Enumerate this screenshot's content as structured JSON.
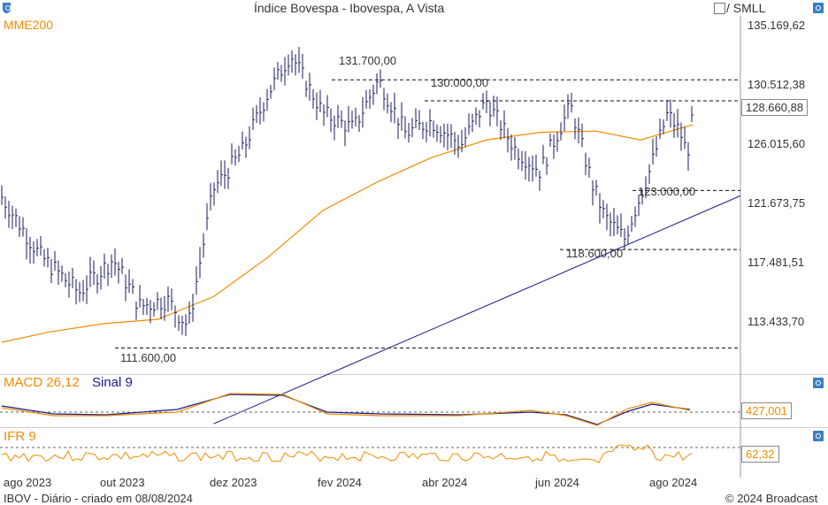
{
  "chart_data": [
    {
      "type": "line",
      "title": "Índice Bovespa - Ibovespa, A Vista",
      "series": [
        {
          "name": "MME200",
          "color": "#f08c00",
          "x": [
            "2023-07-20",
            "2023-08-15",
            "2023-09-15",
            "2023-10-15",
            "2023-11-15",
            "2023-12-15",
            "2024-01-15",
            "2024-02-15",
            "2024-03-15",
            "2024-04-15",
            "2024-05-15",
            "2024-06-15",
            "2024-07-10",
            "2024-08-08"
          ],
          "values": [
            112000,
            112700,
            113300,
            113600,
            115200,
            118000,
            121500,
            123700,
            125500,
            126900,
            127500,
            127600,
            126900,
            128100
          ]
        },
        {
          "name": "Ibovespa",
          "color": "#1a1a5c",
          "x": [
            "2023-07-20",
            "2023-08-10",
            "2023-09-01",
            "2023-09-20",
            "2023-10-05",
            "2023-10-20",
            "2023-11-01",
            "2023-11-15",
            "2023-12-01",
            "2023-12-15",
            "2023-12-28",
            "2024-01-15",
            "2024-02-01",
            "2024-02-15",
            "2024-03-01",
            "2024-03-15",
            "2024-04-01",
            "2024-04-15",
            "2024-05-01",
            "2024-05-15",
            "2024-06-01",
            "2024-06-13",
            "2024-06-20",
            "2024-07-01",
            "2024-07-15",
            "2024-07-25",
            "2024-08-01",
            "2024-08-05",
            "2024-08-08"
          ],
          "values": [
            122500,
            118200,
            115500,
            117900,
            114500,
            115000,
            113100,
            123100,
            126000,
            130500,
            133800,
            129000,
            127800,
            131700,
            127400,
            128400,
            126500,
            130000,
            126200,
            124500,
            129600,
            123500,
            121000,
            119400,
            124500,
            129000,
            127500,
            125800,
            128660
          ]
        }
      ],
      "annotations": [
        "131.700,00",
        "130.000,00",
        "111.600,00",
        "118.600,00",
        "123.000,00"
      ],
      "levels": [
        131700,
        130000,
        123000,
        118600,
        111600
      ],
      "ylim": [
        110000,
        137000
      ],
      "yticks": [
        "135.169,62",
        "130.512,38",
        "126.015,60",
        "121.673,75",
        "117.481,51",
        "113.433,70"
      ],
      "yscale": "log",
      "xticks": [
        "ago 2023",
        "out 2023",
        "dez 2023",
        "fev 2024",
        "abr 2024",
        "jun 2024",
        "ago 2024"
      ],
      "last_value": "128.660,88",
      "trendline": {
        "from": [
          "2023-11-15",
          106500
        ],
        "to": [
          "2024-08-25",
          122600
        ]
      }
    },
    {
      "type": "line",
      "title": "MACD 26,12",
      "series": [
        {
          "name": "MACD 26,12",
          "color": "#f08c00"
        },
        {
          "name": "Sinal 9",
          "color": "#1a1a8c"
        }
      ],
      "last_value": "427,001"
    },
    {
      "type": "line",
      "title": "IFR 9",
      "series": [
        {
          "name": "IFR 9",
          "color": "#f08c00"
        }
      ],
      "last_value": "62,32"
    }
  ],
  "header": {
    "title": "Índice Bovespa - Ibovespa, A Vista",
    "indicator": "MME200",
    "toggle_label": "/ SMLL"
  },
  "price_axis": {
    "ticks": [
      "135.169,62",
      "130.512,38",
      "126.015,60",
      "121.673,75",
      "117.481,51",
      "113.433,70"
    ],
    "last": "128.660,88"
  },
  "annotations": {
    "top": "131.700,00",
    "resist": "130.000,00",
    "bottom": "111.600,00",
    "low": "118.600,00",
    "mid": "123.000,00"
  },
  "macd": {
    "title": "MACD 26,12",
    "signal": "Sinal 9",
    "value": "427,001"
  },
  "ifr": {
    "title": "IFR 9",
    "value": "62,32"
  },
  "months": [
    "ago 2023",
    "out 2023",
    "dez 2023",
    "fev 2024",
    "abr 2024",
    "jun 2024",
    "ago 2024"
  ],
  "footer": {
    "left": "IBOV - Diário - criado em 08/08/2024",
    "right": "© 2024 Broadcast"
  }
}
